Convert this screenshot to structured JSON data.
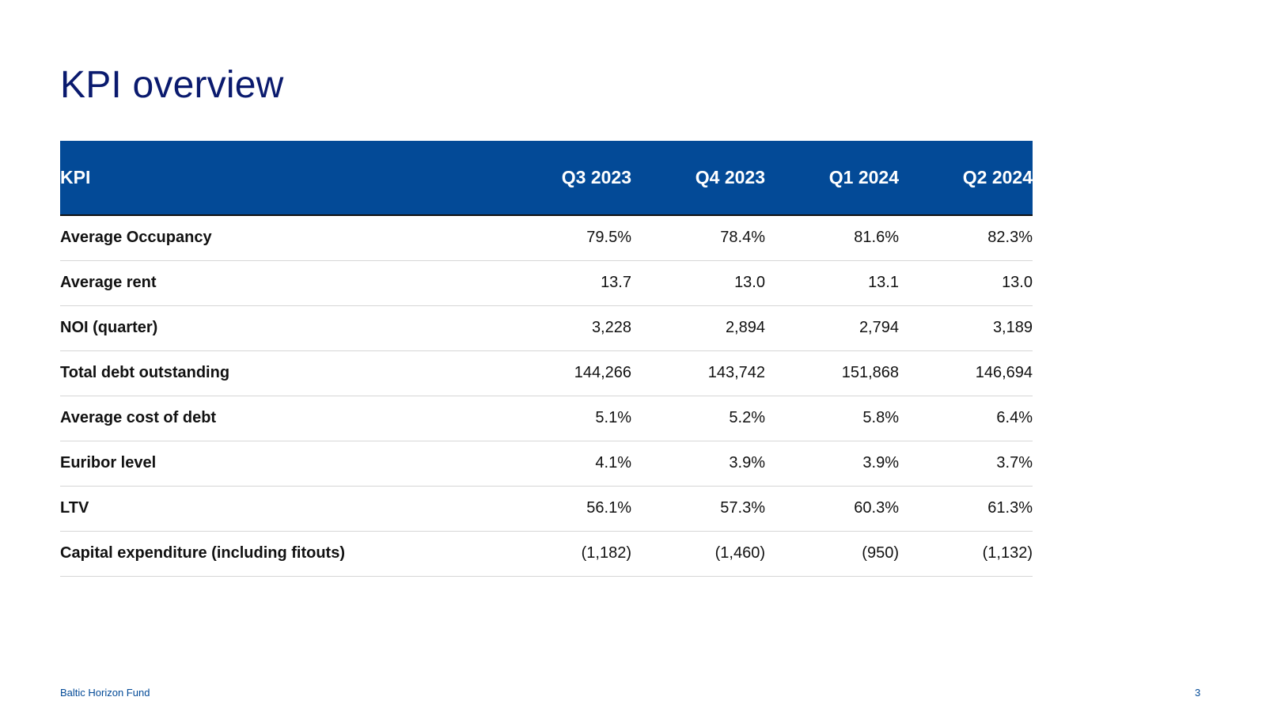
{
  "title": "KPI overview",
  "table": {
    "headers": [
      "KPI",
      "Q3 2023",
      "Q4 2023",
      "Q1 2024",
      "Q2 2024"
    ],
    "rows": [
      {
        "label": "Average Occupancy",
        "values": [
          "79.5%",
          "78.4%",
          "81.6%",
          "82.3%"
        ]
      },
      {
        "label": "Average rent",
        "values": [
          "13.7",
          "13.0",
          "13.1",
          "13.0"
        ]
      },
      {
        "label": "NOI (quarter)",
        "values": [
          "3,228",
          "2,894",
          "2,794",
          "3,189"
        ]
      },
      {
        "label": "Total debt outstanding",
        "values": [
          "144,266",
          "143,742",
          "151,868",
          "146,694"
        ]
      },
      {
        "label": "Average cost of debt",
        "values": [
          "5.1%",
          "5.2%",
          "5.8%",
          "6.4%"
        ]
      },
      {
        "label": "Euribor level",
        "values": [
          "4.1%",
          "3.9%",
          "3.9%",
          "3.7%"
        ]
      },
      {
        "label": "LTV",
        "values": [
          "56.1%",
          "57.3%",
          "60.3%",
          "61.3%"
        ]
      },
      {
        "label": "Capital expenditure (including fitouts)",
        "values": [
          "(1,182)",
          "(1,460)",
          "(950)",
          "(1,132)"
        ]
      }
    ]
  },
  "footer": {
    "company": "Baltic Horizon Fund",
    "page_number": "3"
  },
  "colors": {
    "title": "#0a1a6e",
    "header_bg": "#034a97",
    "footer_text": "#034a97"
  }
}
